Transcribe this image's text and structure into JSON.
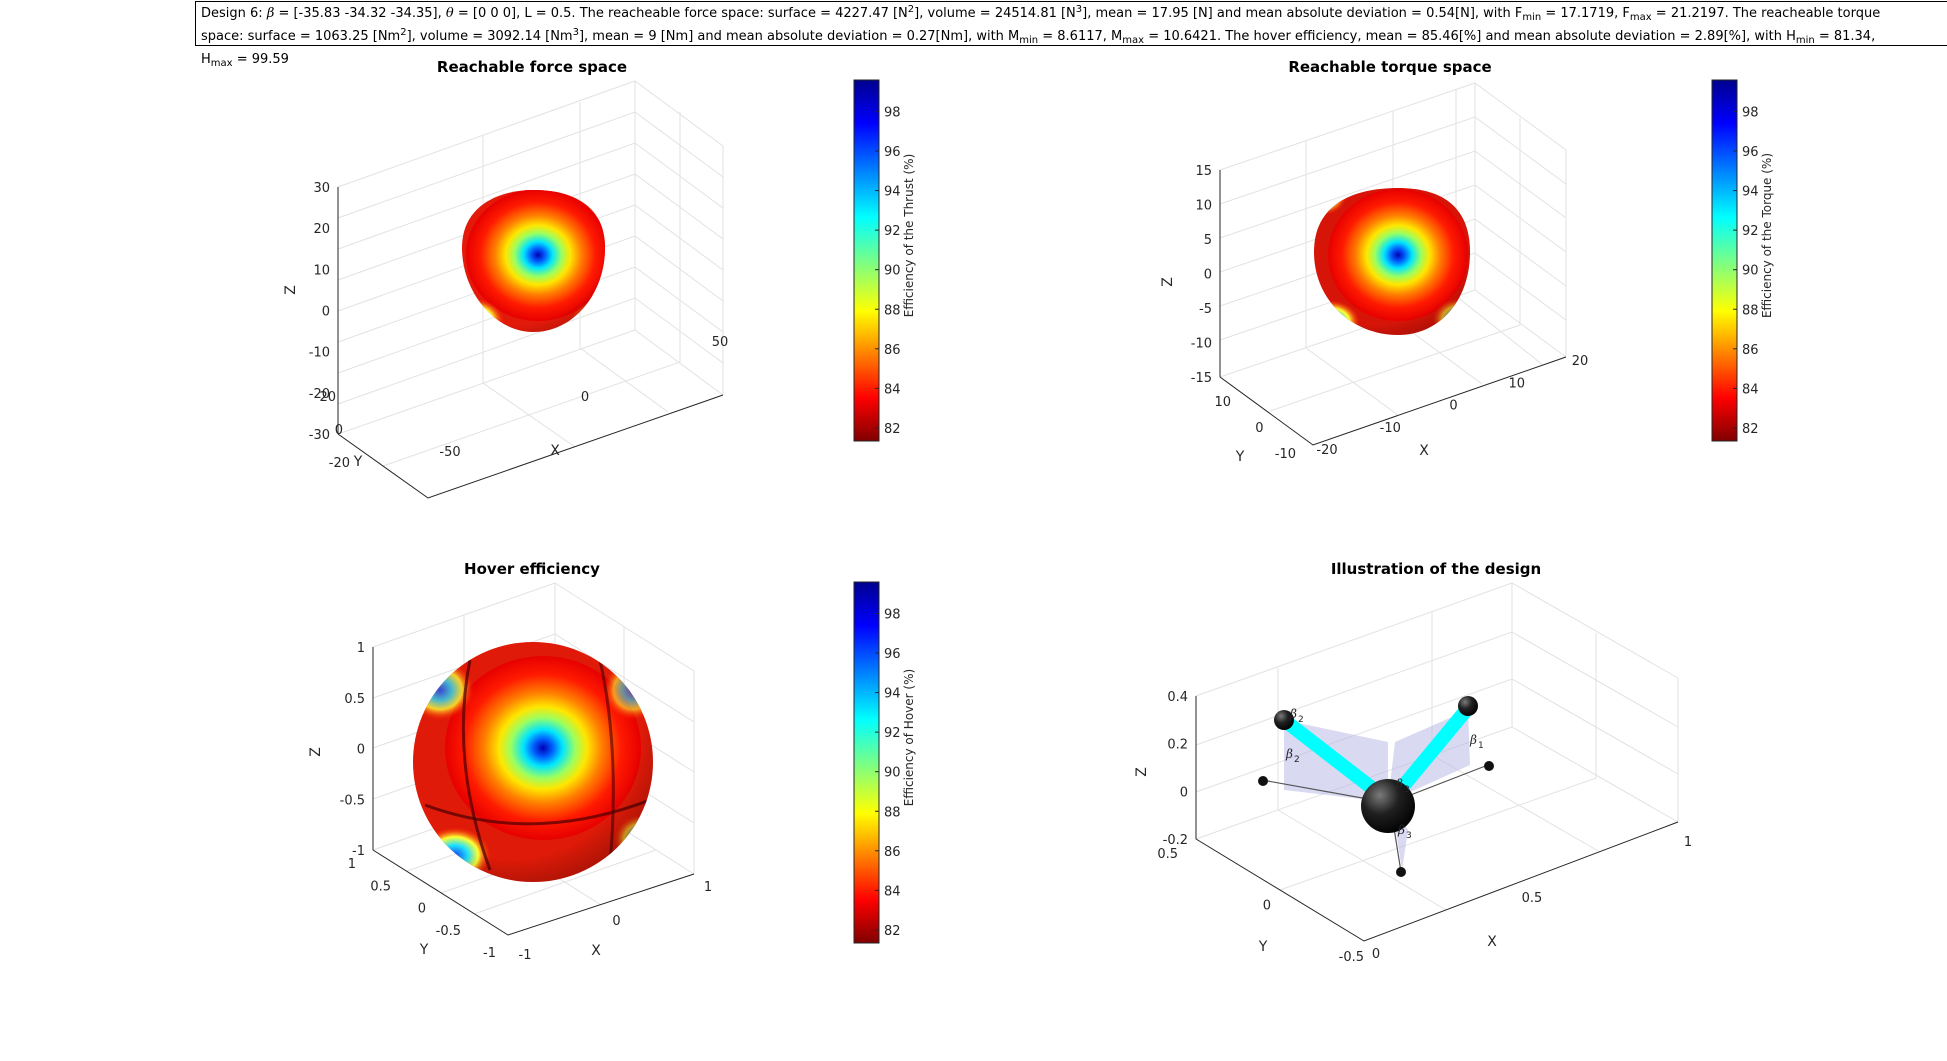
{
  "header": {
    "line1": {
      "design": "Design 6:",
      "beta_sym": "β",
      "beta_val": " = [-35.83 -34.32 -34.35],",
      "theta_sym": "θ",
      "theta_val": " = [0 0 0], L = 0.5. The reacheable force space: surface = 4227.47 [N",
      "sq": "2",
      "vol_pre": "], volume = 24514.81 [N",
      "cube": "3",
      "mid": "], mean = 17.95 [N] and mean absolute deviation = 0.54[N], with F",
      "fmin_sub": "min",
      "fmin_val": " = 17.1719, F",
      "fmax_sub": "max",
      "fmax_val": " = 21.2197. The reacheable torque"
    },
    "line2": {
      "a": "space: surface = 1063.25 [Nm",
      "sq": "2",
      "b": "], volume = 3092.14 [Nm",
      "cube": "3",
      "c": "], mean = 9 [Nm] and mean absolute deviation = 0.27[Nm], with M",
      "mmin_sub": "min",
      "d": " = 8.6117, M",
      "mmax_sub": "max",
      "e": " = 10.6421. The hover efficiency, mean = 85.46[%] and mean absolute deviation = 2.89[%], with H",
      "hmin_sub": "min",
      "f": " = 81.34,"
    },
    "line3": {
      "a": "H",
      "hmax_sub": "max",
      "b": " = 99.59"
    }
  },
  "chart_data": [
    {
      "type": "surface3d",
      "title": "Reachable force space",
      "xlabel": "X",
      "ylabel": "Y",
      "zlabel": "Z",
      "xticks": [
        "-50",
        "0",
        "50"
      ],
      "yticks": [
        "-20",
        "0",
        "20"
      ],
      "zticks": [
        "-30",
        "-20",
        "-10",
        "0",
        "10",
        "20",
        "30"
      ],
      "xlim": [
        -50,
        50
      ],
      "ylim": [
        -20,
        20
      ],
      "zlim": [
        -30,
        30
      ],
      "colorbar": {
        "label": "Efficiency of the Thrust (%)",
        "ticks": [
          "82",
          "84",
          "86",
          "88",
          "90",
          "92",
          "94",
          "96",
          "98"
        ],
        "range": [
          81.34,
          99.59
        ],
        "colormap": "jet-reversed"
      },
      "magnitude_range_N": [
        17.1719,
        21.2197
      ],
      "grid": true
    },
    {
      "type": "surface3d",
      "title": "Reachable torque space",
      "xlabel": "X",
      "ylabel": "Y",
      "zlabel": "Z",
      "xticks": [
        "-20",
        "-10",
        "0",
        "10",
        "20"
      ],
      "yticks": [
        "-10",
        "0",
        "10"
      ],
      "zticks": [
        "-15",
        "-10",
        "-5",
        "0",
        "5",
        "10",
        "15"
      ],
      "xlim": [
        -20,
        20
      ],
      "ylim": [
        -10,
        10
      ],
      "zlim": [
        -15,
        15
      ],
      "colorbar": {
        "label": "Efficiency of the Torque (%)",
        "ticks": [
          "82",
          "84",
          "86",
          "88",
          "90",
          "92",
          "94",
          "96",
          "98"
        ],
        "range": [
          81.34,
          99.59
        ],
        "colormap": "jet-reversed"
      },
      "magnitude_range_Nm": [
        8.6117,
        10.6421
      ],
      "grid": true
    },
    {
      "type": "surface3d",
      "title": "Hover efficiency",
      "xlabel": "X",
      "ylabel": "Y",
      "zlabel": "Z",
      "xticks": [
        "-1",
        "0",
        "1"
      ],
      "yticks": [
        "-1",
        "-0.5",
        "0",
        "0.5",
        "1"
      ],
      "zticks": [
        "-1",
        "-0.5",
        "0",
        "0.5",
        "1"
      ],
      "xlim": [
        -1,
        1
      ],
      "ylim": [
        -1,
        1
      ],
      "zlim": [
        -1,
        1
      ],
      "colorbar": {
        "label": "Efficiency of Hover (%)",
        "ticks": [
          "82",
          "84",
          "86",
          "88",
          "90",
          "92",
          "94",
          "96",
          "98"
        ],
        "range": [
          81.34,
          99.59
        ],
        "colormap": "jet-reversed"
      },
      "efficiency_range": [
        81.34,
        99.59
      ],
      "mean": 85.46,
      "grid": true
    },
    {
      "type": "scatter3d",
      "title": "Illustration of the design",
      "xlabel": "X",
      "ylabel": "Y",
      "zlabel": "Z",
      "xticks": [
        "0",
        "0.5",
        "1"
      ],
      "yticks": [
        "-0.5",
        "0",
        "0.5"
      ],
      "zticks": [
        "-0.2",
        "0",
        "0.2",
        "0.4"
      ],
      "xlim": [
        -0.5,
        1
      ],
      "ylim": [
        -0.5,
        0.5
      ],
      "zlim": [
        -0.2,
        0.4
      ],
      "annotations": [
        "β",
        "1",
        "2",
        "3"
      ],
      "arm_color": "#00ffff",
      "hub_color": "#111111",
      "plane_color": "#b3b3e6",
      "grid": true
    }
  ]
}
